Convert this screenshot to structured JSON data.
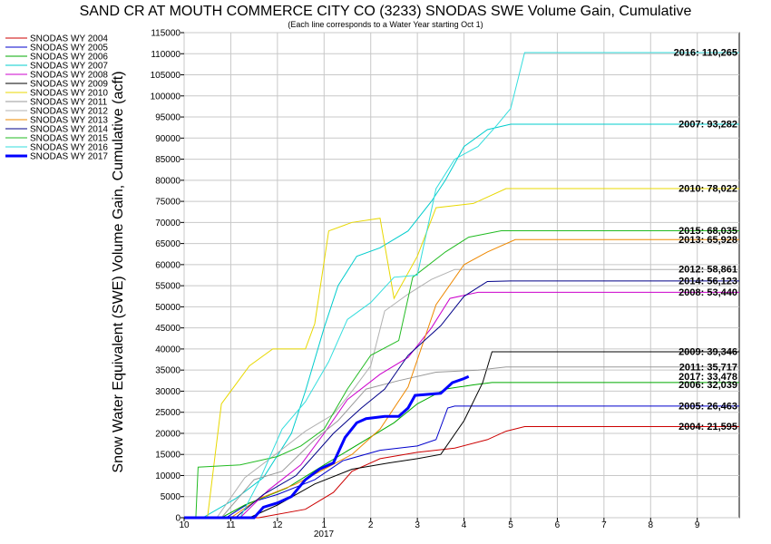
{
  "chart_data": {
    "type": "line",
    "title": "SAND CR AT MOUTH COMMERCE CITY CO (3233) SNODAS SWE Volume Gain, Cumulative",
    "subtitle": "(Each line corresponds to a Water Year starting Oct 1)",
    "ylabel": "Snow Water Equivalent (SWE) Volume Gain, Cumulative (acft)",
    "xlabel": "",
    "x_ticks": [
      "10",
      "11",
      "12",
      "1",
      "2",
      "3",
      "4",
      "5",
      "6",
      "7",
      "8",
      "9"
    ],
    "x_year_label": "2017",
    "xlim": [
      0,
      11.9
    ],
    "ylim": [
      0,
      115000
    ],
    "y_ticks": [
      0,
      5000,
      10000,
      15000,
      20000,
      25000,
      30000,
      35000,
      40000,
      45000,
      50000,
      55000,
      60000,
      65000,
      70000,
      75000,
      80000,
      85000,
      90000,
      95000,
      100000,
      105000,
      110000,
      115000
    ],
    "grid": true,
    "legend_position": "left-top",
    "series": [
      {
        "name": "SNODAS WY 2004",
        "color": "#cc0000",
        "final_label": "2004: 21,595",
        "points": [
          [
            0,
            0
          ],
          [
            1.6,
            0
          ],
          [
            2.6,
            2000
          ],
          [
            3.2,
            6000
          ],
          [
            3.6,
            11000
          ],
          [
            4.2,
            14000
          ],
          [
            5.0,
            15500
          ],
          [
            5.8,
            16500
          ],
          [
            6.5,
            18500
          ],
          [
            6.9,
            20500
          ],
          [
            7.3,
            21595
          ],
          [
            11.9,
            21595
          ]
        ]
      },
      {
        "name": "SNODAS WY 2005",
        "color": "#0000cc",
        "final_label": "2005: 26,463",
        "points": [
          [
            0,
            0
          ],
          [
            0.9,
            0
          ],
          [
            1.4,
            3500
          ],
          [
            2.0,
            5500
          ],
          [
            2.8,
            9000
          ],
          [
            3.4,
            13500
          ],
          [
            4.2,
            16000
          ],
          [
            5.0,
            17000
          ],
          [
            5.4,
            18500
          ],
          [
            5.65,
            26000
          ],
          [
            5.8,
            26463
          ],
          [
            11.9,
            26463
          ]
        ]
      },
      {
        "name": "SNODAS WY 2006",
        "color": "#00aa00",
        "final_label": "2006: 32,039",
        "points": [
          [
            0,
            0
          ],
          [
            0.8,
            0
          ],
          [
            1.3,
            3000
          ],
          [
            2.2,
            7000
          ],
          [
            3.0,
            12500
          ],
          [
            3.9,
            18500
          ],
          [
            4.5,
            22500
          ],
          [
            5.0,
            27000
          ],
          [
            5.6,
            30500
          ],
          [
            6.2,
            31500
          ],
          [
            6.6,
            32039
          ],
          [
            11.9,
            32039
          ]
        ]
      },
      {
        "name": "SNODAS WY 2007",
        "color": "#00cccc",
        "final_label": "2007: 93,282",
        "points": [
          [
            0,
            0
          ],
          [
            0.4,
            0
          ],
          [
            1.1,
            4500
          ],
          [
            1.7,
            9500
          ],
          [
            2.3,
            20000
          ],
          [
            2.6,
            30000
          ],
          [
            3.0,
            45000
          ],
          [
            3.3,
            55000
          ],
          [
            3.7,
            62000
          ],
          [
            4.2,
            64000
          ],
          [
            4.8,
            68000
          ],
          [
            5.3,
            75000
          ],
          [
            5.6,
            80000
          ],
          [
            6.0,
            88000
          ],
          [
            6.5,
            92000
          ],
          [
            7.0,
            93282
          ],
          [
            11.9,
            93282
          ]
        ]
      },
      {
        "name": "SNODAS WY 2008",
        "color": "#cc00cc",
        "final_label": "2008: 53,440",
        "points": [
          [
            0,
            0
          ],
          [
            1.2,
            0
          ],
          [
            1.8,
            6500
          ],
          [
            2.5,
            12500
          ],
          [
            3.0,
            20000
          ],
          [
            3.5,
            28000
          ],
          [
            4.2,
            34000
          ],
          [
            4.8,
            38000
          ],
          [
            5.3,
            45000
          ],
          [
            5.7,
            52000
          ],
          [
            6.3,
            53440
          ],
          [
            11.9,
            53440
          ]
        ]
      },
      {
        "name": "SNODAS WY 2009",
        "color": "#000000",
        "final_label": "2009: 39,346",
        "points": [
          [
            0,
            0
          ],
          [
            1.4,
            0
          ],
          [
            2.0,
            3000
          ],
          [
            2.8,
            8000
          ],
          [
            3.6,
            11500
          ],
          [
            4.4,
            13000
          ],
          [
            5.0,
            14000
          ],
          [
            5.5,
            15000
          ],
          [
            6.0,
            23000
          ],
          [
            6.4,
            32000
          ],
          [
            6.6,
            39346
          ],
          [
            11.9,
            39346
          ]
        ]
      },
      {
        "name": "SNODAS WY 2010",
        "color": "#e8d800",
        "final_label": "2010: 78,022",
        "points": [
          [
            0,
            0
          ],
          [
            0.5,
            0
          ],
          [
            0.8,
            27000
          ],
          [
            1.4,
            36000
          ],
          [
            1.9,
            40000
          ],
          [
            2.6,
            40000
          ],
          [
            2.8,
            46000
          ],
          [
            3.1,
            68000
          ],
          [
            3.6,
            70000
          ],
          [
            4.2,
            71000
          ],
          [
            4.5,
            52000
          ],
          [
            5.0,
            62000
          ],
          [
            5.4,
            73500
          ],
          [
            6.2,
            74500
          ],
          [
            6.9,
            78022
          ],
          [
            11.9,
            78022
          ]
        ]
      },
      {
        "name": "SNODAS WY 2011",
        "color": "#999999",
        "final_label": "2011: 35,717",
        "points": [
          [
            0,
            0
          ],
          [
            0.8,
            0
          ],
          [
            1.5,
            9000
          ],
          [
            2.1,
            11000
          ],
          [
            2.8,
            18500
          ],
          [
            3.3,
            23000
          ],
          [
            3.9,
            30500
          ],
          [
            4.6,
            32500
          ],
          [
            5.4,
            34500
          ],
          [
            6.3,
            35000
          ],
          [
            6.9,
            35717
          ],
          [
            11.9,
            35717
          ]
        ]
      },
      {
        "name": "SNODAS WY 2012",
        "color": "#b0b0b0",
        "final_label": "2012: 58,861",
        "points": [
          [
            0,
            0
          ],
          [
            0.7,
            0
          ],
          [
            1.3,
            9500
          ],
          [
            1.9,
            14500
          ],
          [
            2.6,
            20500
          ],
          [
            3.2,
            24500
          ],
          [
            3.6,
            30000
          ],
          [
            4.0,
            36000
          ],
          [
            4.3,
            49000
          ],
          [
            4.8,
            53000
          ],
          [
            5.3,
            56500
          ],
          [
            5.8,
            58861
          ],
          [
            11.9,
            58861
          ]
        ]
      },
      {
        "name": "SNODAS WY 2013",
        "color": "#ee8800",
        "final_label": "2013: 65,928",
        "points": [
          [
            0,
            0
          ],
          [
            1.0,
            0
          ],
          [
            1.6,
            4500
          ],
          [
            2.4,
            8000
          ],
          [
            3.0,
            11500
          ],
          [
            3.6,
            15000
          ],
          [
            4.2,
            21000
          ],
          [
            4.8,
            31000
          ],
          [
            5.4,
            50500
          ],
          [
            6.0,
            60000
          ],
          [
            6.5,
            63000
          ],
          [
            7.1,
            65928
          ],
          [
            11.9,
            65928
          ]
        ]
      },
      {
        "name": "SNODAS WY 2014",
        "color": "#000088",
        "final_label": "2014: 56,123",
        "points": [
          [
            0,
            0
          ],
          [
            1.1,
            0
          ],
          [
            1.7,
            5500
          ],
          [
            2.4,
            10000
          ],
          [
            3.2,
            20000
          ],
          [
            3.8,
            26000
          ],
          [
            4.3,
            30500
          ],
          [
            4.8,
            38500
          ],
          [
            5.5,
            45500
          ],
          [
            6.0,
            52500
          ],
          [
            6.5,
            56000
          ],
          [
            7.0,
            56123
          ],
          [
            11.9,
            56123
          ]
        ]
      },
      {
        "name": "SNODAS WY 2015",
        "color": "#22bb22",
        "final_label": "2015: 68,035",
        "points": [
          [
            0,
            0
          ],
          [
            0.25,
            0
          ],
          [
            0.3,
            12000
          ],
          [
            1.2,
            12500
          ],
          [
            2.0,
            14500
          ],
          [
            2.5,
            17000
          ],
          [
            3.0,
            21000
          ],
          [
            3.5,
            30500
          ],
          [
            4.0,
            38500
          ],
          [
            4.6,
            42000
          ],
          [
            4.9,
            57000
          ],
          [
            5.6,
            63000
          ],
          [
            6.1,
            66500
          ],
          [
            6.8,
            68035
          ],
          [
            11.9,
            68035
          ]
        ]
      },
      {
        "name": "SNODAS WY 2016",
        "color": "#33dddd",
        "final_label": "2016: 110,265",
        "points": [
          [
            0,
            0
          ],
          [
            1.2,
            0
          ],
          [
            1.6,
            8500
          ],
          [
            2.1,
            21000
          ],
          [
            2.6,
            27500
          ],
          [
            3.1,
            37000
          ],
          [
            3.5,
            47000
          ],
          [
            4.0,
            51000
          ],
          [
            4.5,
            57000
          ],
          [
            5.0,
            57500
          ],
          [
            5.4,
            78000
          ],
          [
            5.8,
            85000
          ],
          [
            6.3,
            88000
          ],
          [
            6.7,
            93000
          ],
          [
            7.0,
            97000
          ],
          [
            7.3,
            110265
          ],
          [
            11.9,
            110265
          ]
        ]
      },
      {
        "name": "SNODAS WY 2017",
        "color": "#0000ff",
        "width": 3,
        "final_label": "2017: 33,478",
        "points": [
          [
            0,
            0
          ],
          [
            1.5,
            0
          ],
          [
            1.7,
            2500
          ],
          [
            2.0,
            3500
          ],
          [
            2.3,
            5000
          ],
          [
            2.6,
            9000
          ],
          [
            2.9,
            11500
          ],
          [
            3.2,
            13000
          ],
          [
            3.45,
            19000
          ],
          [
            3.7,
            22500
          ],
          [
            3.9,
            23500
          ],
          [
            4.3,
            24000
          ],
          [
            4.6,
            24000
          ],
          [
            4.8,
            26000
          ],
          [
            4.95,
            29000
          ],
          [
            5.5,
            29500
          ],
          [
            5.75,
            32000
          ],
          [
            6.0,
            33000
          ],
          [
            6.1,
            33478
          ]
        ]
      }
    ]
  }
}
